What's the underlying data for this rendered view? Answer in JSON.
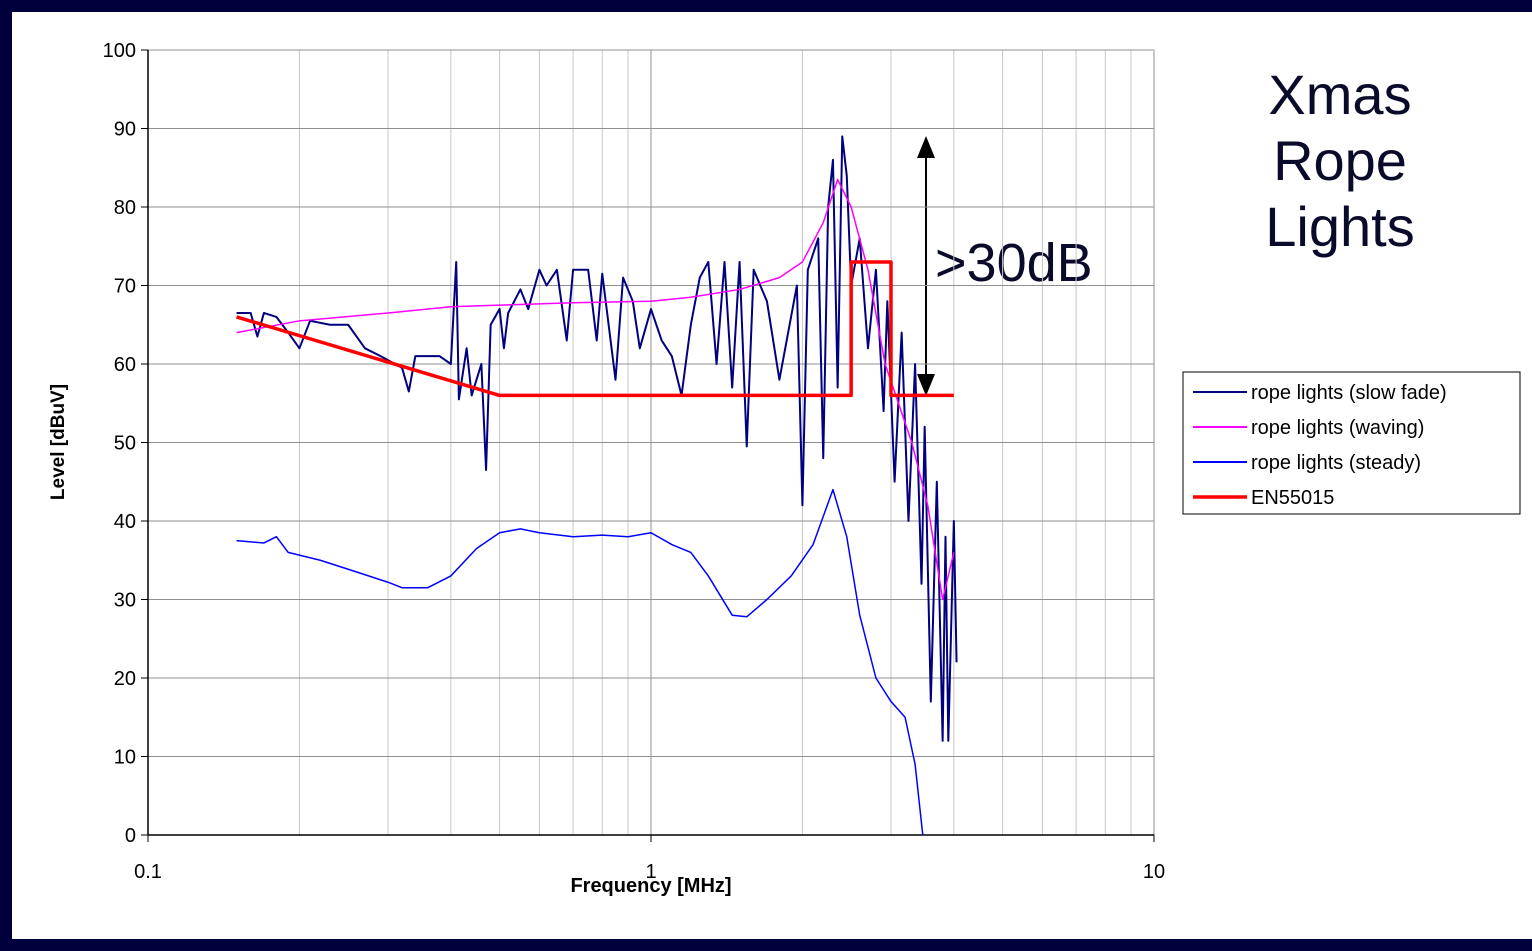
{
  "chart_data": {
    "type": "line",
    "title": "Xmas Rope Lights",
    "xlabel": "Frequency [MHz]",
    "ylabel": "Level [dBuV]",
    "annotation": ">30dB",
    "log_x": true,
    "grid": true,
    "minor_grid": true,
    "legend": "right",
    "xlim": [
      0.1,
      10
    ],
    "xticks": [
      0.1,
      1,
      10
    ],
    "ylim": [
      0,
      100
    ],
    "yticks": [
      0,
      10,
      20,
      30,
      40,
      50,
      60,
      70,
      80,
      90,
      100
    ],
    "series": [
      {
        "name": "rope lights (slow fade)",
        "color": "#000080",
        "width": 2,
        "x": [
          0.15,
          0.16,
          0.165,
          0.17,
          0.18,
          0.19,
          0.2,
          0.21,
          0.23,
          0.25,
          0.27,
          0.29,
          0.32,
          0.33,
          0.34,
          0.38,
          0.4,
          0.41,
          0.415,
          0.43,
          0.44,
          0.46,
          0.47,
          0.48,
          0.5,
          0.51,
          0.52,
          0.55,
          0.57,
          0.6,
          0.62,
          0.65,
          0.68,
          0.7,
          0.75,
          0.78,
          0.8,
          0.85,
          0.88,
          0.92,
          0.95,
          1.0,
          1.05,
          1.1,
          1.15,
          1.2,
          1.25,
          1.3,
          1.35,
          1.4,
          1.45,
          1.5,
          1.55,
          1.6,
          1.7,
          1.8,
          1.95,
          2.0,
          2.05,
          2.15,
          2.2,
          2.25,
          2.3,
          2.35,
          2.4,
          2.45,
          2.5,
          2.6,
          2.7,
          2.8,
          2.9,
          2.95,
          3.05,
          3.15,
          3.25,
          3.35,
          3.45,
          3.5,
          3.6,
          3.7,
          3.8,
          3.85,
          3.9,
          4.0,
          4.05
        ],
        "values": [
          66.5,
          66.5,
          63.5,
          66.5,
          66,
          64,
          62,
          65.5,
          65,
          65,
          62,
          61,
          59.5,
          56.5,
          61,
          61,
          60,
          73,
          55.5,
          62,
          56,
          60,
          46.5,
          65,
          67,
          62,
          66.5,
          69.5,
          67,
          72,
          70,
          72,
          63,
          72,
          72,
          63,
          71.5,
          58,
          71,
          68,
          62,
          67,
          63,
          61,
          56,
          65,
          71,
          73,
          60,
          73,
          57,
          73,
          49.5,
          72,
          68,
          58,
          70,
          42,
          72,
          76,
          48,
          80,
          86,
          57,
          89,
          84,
          70,
          76,
          62,
          72,
          54,
          68,
          45,
          64,
          40,
          60,
          32,
          52,
          17,
          45,
          12,
          38,
          12,
          40,
          22
        ]
      },
      {
        "name": "rope lights (waving)",
        "color": "#ff00ff",
        "width": 1.5,
        "x": [
          0.15,
          0.2,
          0.3,
          0.4,
          0.5,
          0.7,
          1.0,
          1.2,
          1.5,
          1.8,
          2.0,
          2.2,
          2.35,
          2.5,
          2.7,
          2.92,
          3.3,
          3.55,
          3.8,
          4.0
        ],
        "values": [
          64,
          65.5,
          66.5,
          67.3,
          67.5,
          67.8,
          68,
          68.5,
          69.5,
          71,
          73,
          78,
          83.5,
          80,
          72,
          60,
          50,
          42,
          30,
          36
        ]
      },
      {
        "name": "rope lights (steady)",
        "color": "#0000ff",
        "width": 1.5,
        "x": [
          0.15,
          0.17,
          0.18,
          0.19,
          0.22,
          0.26,
          0.3,
          0.32,
          0.36,
          0.4,
          0.45,
          0.5,
          0.55,
          0.6,
          0.7,
          0.8,
          0.9,
          1.0,
          1.1,
          1.2,
          1.3,
          1.45,
          1.55,
          1.7,
          1.9,
          2.1,
          2.3,
          2.45,
          2.6,
          2.8,
          3.0,
          3.2,
          3.35,
          3.47
        ],
        "values": [
          37.5,
          37.2,
          38,
          36,
          35,
          33.5,
          32.2,
          31.5,
          31.5,
          33,
          36.5,
          38.5,
          39,
          38.5,
          38,
          38.2,
          38,
          38.5,
          37,
          36,
          33,
          28,
          27.8,
          30,
          33,
          37,
          44,
          38,
          28,
          20,
          17,
          15,
          9,
          0
        ]
      },
      {
        "name": "EN55015",
        "color": "#ff0000",
        "width": 3.5,
        "x": [
          0.15,
          0.5,
          2.5,
          2.5,
          3.0,
          3.0,
          4.0
        ],
        "values": [
          66,
          56,
          56,
          73,
          73,
          56,
          56
        ]
      }
    ]
  }
}
